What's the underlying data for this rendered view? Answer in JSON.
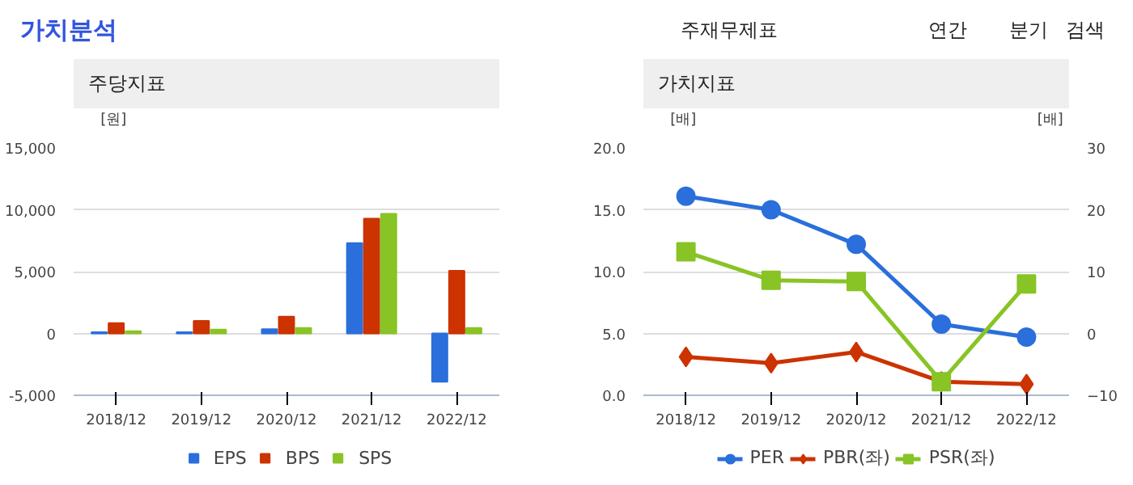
{
  "chart_data": [
    {
      "type": "other",
      "title": "가치분석",
      "annotations": [
        "주재무제표",
        "연간",
        "분기",
        "검색"
      ]
    },
    {
      "type": "bar",
      "title": "주당지표",
      "ylabel": "[원]",
      "categories": [
        "2018/12",
        "2019/12",
        "2020/12",
        "2021/12",
        "2022/12"
      ],
      "series": [
        {
          "name": "EPS",
          "color": "#2a6fdb",
          "values": [
            100,
            100,
            350,
            7300,
            -3900
          ]
        },
        {
          "name": "BPS",
          "color": "#cc3300",
          "values": [
            840,
            1010,
            1360,
            9280,
            5060
          ]
        },
        {
          "name": "SPS",
          "color": "#88c425",
          "values": [
            180,
            310,
            440,
            9670,
            440
          ]
        }
      ],
      "ylim": [
        -5000,
        15000
      ],
      "yticks": [
        {
          "value": -5000,
          "label": "-5,000"
        },
        0,
        {
          "value": 5000,
          "label": "5,000"
        },
        {
          "value": 10000,
          "label": "10,000"
        },
        {
          "value": 15000,
          "label": "15,000"
        }
      ],
      "grid": "y",
      "legend": "bottom"
    },
    {
      "type": "line",
      "title": "가치지표",
      "ylabel": "[배]",
      "y2label": "[배]",
      "categories": [
        "2018/12",
        "2019/12",
        "2020/12",
        "2021/12",
        "2022/12"
      ],
      "series": [
        {
          "name": "PER",
          "color": "#2a6fdb",
          "marker": "circle",
          "axis": "y2",
          "values": [
            22.2,
            20.0,
            14.4,
            1.5,
            -0.6
          ]
        },
        {
          "name": "PBR(좌)",
          "color": "#cc3300",
          "marker": "diamond",
          "values": [
            3.1,
            2.6,
            3.5,
            1.1,
            0.9
          ]
        },
        {
          "name": "PSR(좌)",
          "color": "#88c425",
          "marker": "square",
          "values": [
            11.6,
            9.3,
            9.2,
            1.1,
            9.0
          ]
        }
      ],
      "ylim": [
        0,
        20
      ],
      "yticks": [
        {
          "value": 0,
          "label": "0.0"
        },
        {
          "value": 5,
          "label": "5.0"
        },
        {
          "value": 10,
          "label": "10.0"
        },
        {
          "value": 15,
          "label": "15.0"
        },
        {
          "value": 20,
          "label": "20.0"
        }
      ],
      "y2lim": [
        -10,
        30
      ],
      "y2ticks": [
        -10,
        0,
        10,
        20,
        30
      ],
      "grid": "y",
      "legend": "bottom",
      "line_style": "solid"
    }
  ]
}
